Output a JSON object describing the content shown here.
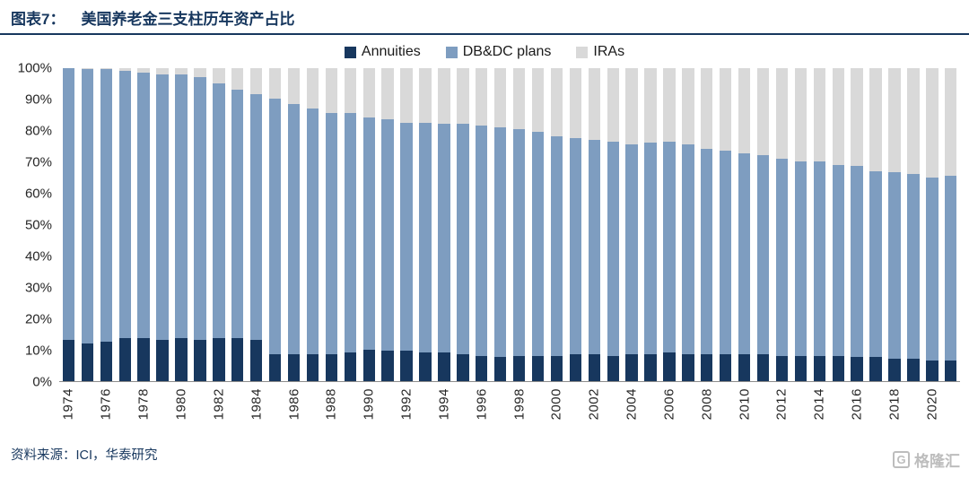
{
  "header": {
    "prefix": "图表7：",
    "title": "美国养老金三支柱历年资产占比"
  },
  "footer": {
    "source": "资料来源：ICI，华泰研究",
    "watermark": "格隆汇",
    "watermark_icon": "G"
  },
  "colors": {
    "accent": "#17375e",
    "annuities": "#17375e",
    "db_dc_plans": "#7e9dc0",
    "iras": "#d9d9d9"
  },
  "chart_data": {
    "type": "bar",
    "stacked": true,
    "unit": "%",
    "title": "美国养老金三支柱历年资产占比",
    "legend_position": "top",
    "ylim": [
      0,
      100
    ],
    "yticks": [
      "100%",
      "90%",
      "80%",
      "70%",
      "60%",
      "50%",
      "40%",
      "30%",
      "20%",
      "10%",
      "0%"
    ],
    "xtick_step": 2,
    "x": [
      1974,
      1975,
      1976,
      1977,
      1978,
      1979,
      1980,
      1981,
      1982,
      1983,
      1984,
      1985,
      1986,
      1987,
      1988,
      1989,
      1990,
      1991,
      1992,
      1993,
      1994,
      1995,
      1996,
      1997,
      1998,
      1999,
      2000,
      2001,
      2002,
      2003,
      2004,
      2005,
      2006,
      2007,
      2008,
      2009,
      2010,
      2011,
      2012,
      2013,
      2014,
      2015,
      2016,
      2017,
      2018,
      2019,
      2020,
      2021
    ],
    "series": [
      {
        "name": "Annuities",
        "color": "#17375e",
        "values": [
          13,
          12,
          12.5,
          13.5,
          13.5,
          13,
          13.5,
          13,
          13.5,
          13.5,
          13,
          8.5,
          8.5,
          8.5,
          8.5,
          9,
          10,
          9.5,
          9.5,
          9,
          9,
          8.5,
          8,
          7.5,
          8,
          8,
          8,
          8.5,
          8.5,
          8,
          8.5,
          8.5,
          9,
          8.5,
          8.5,
          8.5,
          8.5,
          8.5,
          8,
          8,
          8,
          8,
          7.5,
          7.5,
          7,
          7,
          6.5,
          6.5
        ]
      },
      {
        "name": "DB&DC plans",
        "color": "#7e9dc0",
        "values": [
          87,
          87.5,
          87,
          85.5,
          85,
          85,
          84.5,
          84,
          81.5,
          79.5,
          78.5,
          81.5,
          80,
          78.5,
          77,
          76.5,
          74,
          74,
          73,
          73.5,
          73,
          73.5,
          73.5,
          73.5,
          72.5,
          71.5,
          70,
          69,
          68.5,
          68.5,
          67,
          67.5,
          67.5,
          67,
          65.5,
          65,
          64,
          63.5,
          63,
          62,
          62,
          61,
          61,
          59.5,
          59.5,
          59,
          58.5,
          59
        ]
      },
      {
        "name": "IRAs",
        "color": "#d9d9d9",
        "values": [
          0,
          0.5,
          0.5,
          1,
          1.5,
          2,
          2,
          3,
          5,
          7,
          8.5,
          10,
          11.5,
          13,
          14.5,
          14.5,
          16,
          16.5,
          17.5,
          17.5,
          18,
          18,
          18.5,
          19,
          19.5,
          20.5,
          22,
          22.5,
          23,
          23.5,
          24.5,
          24,
          23.5,
          24.5,
          26,
          26.5,
          27.5,
          28,
          29,
          30,
          30,
          31,
          31.5,
          33,
          33.5,
          34,
          35,
          34.5
        ]
      }
    ]
  }
}
